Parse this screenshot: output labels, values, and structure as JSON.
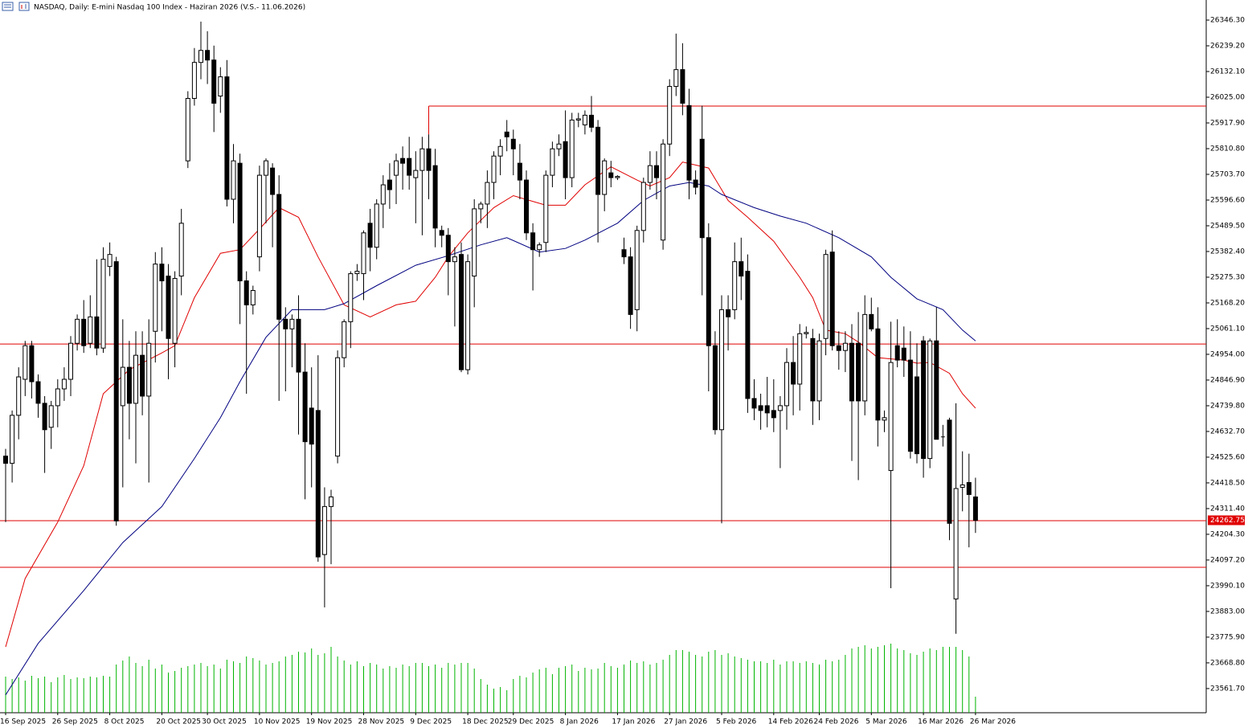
{
  "chart_data": {
    "type": "candlestick",
    "title": "NASDAQ, Daily:  E-mini Nasdaq 100 Index -  Haziran 2026 (V.S.- 11.06.2026)",
    "categories": [
      "16 Sep 2025",
      null,
      null,
      null,
      null,
      null,
      null,
      null,
      "26 Sep 2025",
      null,
      null,
      null,
      null,
      null,
      null,
      null,
      "8 Oct 2025",
      null,
      null,
      null,
      null,
      null,
      null,
      null,
      "20 Oct 2025",
      null,
      null,
      null,
      null,
      null,
      null,
      "30 Oct 2025",
      null,
      null,
      null,
      null,
      null,
      null,
      null,
      "10 Nov 2025",
      null,
      null,
      null,
      null,
      null,
      null,
      null,
      "19 Nov 2025",
      null,
      null,
      null,
      null,
      null,
      null,
      null,
      "28 Nov 2025",
      null,
      null,
      null,
      null,
      null,
      null,
      null,
      "9 Dec 2025",
      null,
      null,
      null,
      null,
      null,
      null,
      null,
      "18 Dec 2025",
      null,
      null,
      null,
      null,
      null,
      null,
      "29 Dec 2025",
      null,
      null,
      null,
      null,
      null,
      null,
      null,
      "8 Jan 2026",
      null,
      null,
      null,
      null,
      null,
      null,
      null,
      "17 Jan 2026",
      null,
      null,
      null,
      null,
      null,
      null,
      null,
      "27 Jan 2026",
      null,
      null,
      null,
      null,
      null,
      null,
      null,
      "5 Feb 2026",
      null,
      null,
      null,
      null,
      null,
      null,
      null,
      "14 Feb 2026",
      null,
      null,
      null,
      null,
      null,
      null,
      "24 Feb 2026",
      null,
      null,
      null,
      null,
      null,
      null,
      null,
      "5 Mar 2026",
      null,
      null,
      null,
      null,
      null,
      null,
      null,
      "16 Mar 2026",
      null,
      null,
      null,
      null,
      null,
      null,
      null,
      "26 Mar 2026"
    ],
    "open": [
      24530,
      24500,
      24700,
      24850,
      24990,
      24840,
      24750,
      24650,
      24740,
      24810,
      24850,
      25000,
      25100,
      25000,
      25110,
      24980,
      25320,
      25340,
      24740,
      24900,
      24750,
      24950,
      24780,
      25050,
      25330,
      25280,
      25000,
      25280,
      25760,
      26020,
      26170,
      26220,
      26180,
      26030,
      26110,
      25600,
      25750,
      25260,
      25160,
      25360,
      25700,
      25730,
      25620,
      25100,
      25060,
      25100,
      24880,
      24730,
      24720,
      24120,
      24320,
      24530,
      24940,
      25090,
      25290,
      25290,
      25500,
      25400,
      25580,
      25680,
      25700,
      25770,
      25770,
      25690,
      25720,
      25810,
      25740,
      25470,
      25450,
      25340,
      25370,
      24890,
      25280,
      25560,
      25580,
      25670,
      25780,
      25880,
      25850,
      25750,
      25680,
      25460,
      25390,
      25420,
      25700,
      25810,
      25840,
      25690,
      25930,
      25910,
      25950,
      25900,
      25620,
      25710,
      25690,
      25390,
      25360,
      25140,
      25470,
      25670,
      25740,
      25430,
      25830,
      26070,
      26140,
      25990,
      25680,
      25850,
      25440,
      24990,
      24640,
      25140,
      25140,
      25340,
      25300,
      24770,
      24740,
      24740,
      24720,
      24720,
      24740,
      24920,
      24830,
      25040,
      25020,
      24760,
      25020,
      25380,
      24990,
      24970,
      25000,
      25000,
      24760,
      25120,
      25060,
      24680,
      24470,
      24990,
      24980,
      24930,
      24860,
      25010,
      24520,
      25010,
      24610,
      24680,
      23935,
      24400,
      24420,
      24360
    ],
    "high": [
      24560,
      24720,
      24900,
      25010,
      25010,
      24870,
      24780,
      24760,
      24850,
      24900,
      25030,
      25120,
      25180,
      25200,
      25350,
      25400,
      25420,
      25360,
      25100,
      25010,
      25050,
      25050,
      25100,
      25380,
      25400,
      25330,
      25300,
      25560,
      26050,
      26230,
      26340,
      26300,
      26240,
      26150,
      26180,
      25830,
      25790,
      25300,
      25240,
      25740,
      25770,
      25750,
      25700,
      25150,
      25120,
      25200,
      25000,
      24900,
      24950,
      24400,
      24390,
      24970,
      25100,
      25300,
      25330,
      25470,
      25560,
      25600,
      25700,
      25750,
      25790,
      25820,
      25860,
      25800,
      25860,
      25870,
      25810,
      25490,
      25480,
      25400,
      25420,
      25370,
      25600,
      25590,
      25720,
      25800,
      25850,
      25930,
      25890,
      25830,
      25720,
      25500,
      25420,
      25720,
      25840,
      25870,
      25970,
      25960,
      25960,
      25970,
      26030,
      25930,
      25770,
      25760,
      25700,
      25440,
      25400,
      25490,
      25690,
      25800,
      25800,
      25850,
      26100,
      26290,
      26250,
      26060,
      25720,
      25990,
      25500,
      25050,
      25200,
      25200,
      25420,
      25440,
      25370,
      24850,
      24790,
      24860,
      24850,
      24780,
      24980,
      25030,
      25080,
      25070,
      25060,
      25040,
      25390,
      25470,
      25050,
      25050,
      25080,
      25130,
      25200,
      25190,
      25150,
      24720,
      25090,
      25100,
      25070,
      25050,
      25000,
      25030,
      25020,
      25150,
      24660,
      24690,
      24750,
      24550,
      24540,
      24440
    ],
    "low": [
      24255,
      24420,
      24600,
      24780,
      24770,
      24690,
      24460,
      24560,
      24650,
      24760,
      24780,
      24970,
      24960,
      24980,
      24950,
      24960,
      25280,
      24240,
      24400,
      24600,
      24500,
      24700,
      24420,
      24920,
      25050,
      24850,
      24900,
      25200,
      25730,
      25990,
      26100,
      26080,
      25880,
      25960,
      25570,
      25500,
      25080,
      24790,
      25120,
      25300,
      25500,
      25400,
      24760,
      24800,
      24900,
      24620,
      24350,
      24400,
      24090,
      23900,
      24080,
      24500,
      24900,
      24980,
      25260,
      25180,
      25300,
      25350,
      25480,
      25560,
      25580,
      25640,
      25640,
      25500,
      25450,
      25600,
      25400,
      25400,
      25200,
      25070,
      24880,
      24870,
      25150,
      25500,
      25480,
      25600,
      25700,
      25800,
      25700,
      25600,
      25430,
      25220,
      25360,
      25380,
      25650,
      25780,
      25600,
      25650,
      25900,
      25870,
      25880,
      25420,
      25550,
      25650,
      25680,
      25330,
      25060,
      25050,
      25420,
      25640,
      25600,
      25390,
      25780,
      26030,
      25950,
      25600,
      25620,
      25200,
      24800,
      24620,
      24250,
      24970,
      25100,
      25180,
      24710,
      24680,
      24640,
      24650,
      24630,
      24480,
      24640,
      24700,
      24720,
      25020,
      24660,
      24680,
      24950,
      24970,
      24890,
      24880,
      24510,
      24430,
      24700,
      25050,
      24570,
      24630,
      23980,
      24900,
      24860,
      24520,
      24500,
      24440,
      24480,
      24600,
      24570,
      24180,
      23790,
      24300,
      24150,
      24210
    ],
    "close": [
      24500,
      24700,
      24860,
      24990,
      24840,
      24750,
      24640,
      24740,
      24810,
      24850,
      25000,
      25100,
      24990,
      25110,
      24980,
      25350,
      25370,
      24260,
      24900,
      24750,
      24950,
      24780,
      25000,
      25330,
      25260,
      25020,
      25270,
      25500,
      26020,
      26170,
      26220,
      26180,
      26000,
      26110,
      25600,
      25760,
      25260,
      25160,
      25220,
      25700,
      25760,
      25620,
      25100,
      25060,
      25100,
      24880,
      24590,
      24580,
      24110,
      24320,
      24360,
      24940,
      25090,
      25290,
      25300,
      25460,
      25400,
      25580,
      25660,
      25640,
      25760,
      25750,
      25700,
      25720,
      25810,
      25720,
      25480,
      25450,
      25340,
      25360,
      24890,
      25340,
      25560,
      25580,
      25670,
      25780,
      25820,
      25860,
      25810,
      25680,
      25460,
      25390,
      25410,
      25700,
      25810,
      25830,
      25690,
      25930,
      25935,
      25950,
      25900,
      25620,
      25760,
      25690,
      25695,
      25360,
      25120,
      25470,
      25670,
      25740,
      25690,
      25830,
      26070,
      26140,
      26000,
      25680,
      25650,
      25440,
      24990,
      24640,
      25140,
      25110,
      25340,
      25280,
      24770,
      24730,
      24720,
      24710,
      24690,
      24740,
      24920,
      24830,
      25040,
      25045,
      24760,
      25010,
      25370,
      24990,
      24970,
      25000,
      24760,
      24760,
      25120,
      25060,
      24680,
      24690,
      24920,
      24930,
      24930,
      24550,
      24540,
      24520,
      25010,
      24600,
      24610,
      24250,
      24395,
      24410,
      24370,
      24262.75
    ],
    "volume": [
      45,
      42,
      44,
      40,
      46,
      43,
      45,
      38,
      44,
      47,
      42,
      44,
      43,
      45,
      44,
      46,
      45,
      60,
      65,
      70,
      62,
      58,
      66,
      55,
      60,
      50,
      52,
      56,
      58,
      60,
      62,
      58,
      60,
      55,
      66,
      64,
      62,
      70,
      68,
      65,
      60,
      62,
      64,
      70,
      72,
      76,
      75,
      80,
      72,
      74,
      82,
      70,
      65,
      60,
      64,
      58,
      62,
      60,
      55,
      58,
      56,
      60,
      58,
      62,
      62,
      58,
      60,
      56,
      62,
      60,
      62,
      62,
      55,
      42,
      35,
      30,
      32,
      28,
      42,
      46,
      44,
      50,
      54,
      56,
      48,
      56,
      58,
      60,
      52,
      56,
      54,
      55,
      62,
      58,
      56,
      60,
      65,
      62,
      64,
      60,
      62,
      66,
      72,
      78,
      78,
      76,
      72,
      70,
      76,
      78,
      72,
      74,
      70,
      68,
      66,
      64,
      64,
      62,
      66,
      60,
      64,
      64,
      62,
      64,
      62,
      60,
      66,
      64,
      66,
      72,
      80,
      82,
      84,
      80,
      82,
      84,
      86,
      80,
      78,
      74,
      72,
      76,
      80,
      78,
      82,
      82,
      82,
      78,
      70,
      20
    ],
    "volume_color": "#00b400",
    "indicators": [
      {
        "color": "#e00000",
        "x": [
          0,
          3,
          8,
          12,
          15,
          19,
          24,
          26,
          29,
          33,
          36,
          39,
          42,
          45,
          48,
          52,
          56,
          60,
          63,
          66,
          68,
          71,
          75,
          78,
          83,
          86,
          89,
          93,
          97,
          99,
          102,
          104,
          108,
          111,
          114,
          118,
          122,
          124,
          126,
          129,
          131,
          134,
          138,
          140,
          142,
          145,
          147,
          149
        ],
        "values": [
          23735,
          24020,
          24255,
          24490,
          24790,
          24890,
          24960,
          24990,
          25190,
          25375,
          25390,
          25476,
          25565,
          25525,
          25360,
          25160,
          25110,
          25160,
          25175,
          25275,
          25360,
          25460,
          25565,
          25615,
          25575,
          25575,
          25660,
          25735,
          25680,
          25655,
          25690,
          25755,
          25730,
          25595,
          25525,
          25425,
          25275,
          25190,
          25055,
          25040,
          25005,
          24940,
          24930,
          24917,
          24920,
          24875,
          24790,
          24730
        ]
      },
      {
        "color": "#000080",
        "x": [
          0,
          5,
          12,
          18,
          24,
          29,
          33,
          36,
          40,
          44,
          49,
          52,
          57,
          63,
          68,
          73,
          77,
          82,
          86,
          89,
          94,
          98,
          102,
          105,
          108,
          110,
          115,
          119,
          123,
          128,
          133,
          136,
          140,
          144,
          147,
          149
        ],
        "values": [
          23535,
          23750,
          23970,
          24170,
          24320,
          24520,
          24690,
          24840,
          25025,
          25140,
          25140,
          25165,
          25240,
          25325,
          25365,
          25410,
          25440,
          25380,
          25395,
          25430,
          25500,
          25595,
          25655,
          25670,
          25655,
          25620,
          25565,
          25530,
          25500,
          25440,
          25360,
          25275,
          25185,
          25140,
          25055,
          25010
        ]
      }
    ],
    "hlines": [
      {
        "value": 25988,
        "from": 65,
        "color": "#e00000"
      },
      {
        "value": 24997,
        "color": "#e00000"
      },
      {
        "value": 24261,
        "color": "#e00000"
      },
      {
        "value": 24067,
        "color": "#e00000"
      }
    ],
    "ylim": [
      23461,
      26430
    ],
    "yticks": [
      {
        "value": 26346.3,
        "label": "26346.30"
      },
      {
        "value": 26239.2,
        "label": "26239.20"
      },
      {
        "value": 26132.1,
        "label": "26132.10"
      },
      {
        "value": 26025,
        "label": "26025.00"
      },
      {
        "value": 25917.9,
        "label": "25917.90"
      },
      {
        "value": 25810.8,
        "label": "25810.80"
      },
      {
        "value": 25703.7,
        "label": "25703.70"
      },
      {
        "value": 25596.6,
        "label": "25596.60"
      },
      {
        "value": 25489.5,
        "label": "25489.50"
      },
      {
        "value": 25382.4,
        "label": "25382.40"
      },
      {
        "value": 25275.3,
        "label": "25275.30"
      },
      {
        "value": 25168.2,
        "label": "25168.20"
      },
      {
        "value": 25061.1,
        "label": "25061.10"
      },
      {
        "value": 24954,
        "label": "24954.00"
      },
      {
        "value": 24846.9,
        "label": "24846.90"
      },
      {
        "value": 24739.8,
        "label": "24739.80"
      },
      {
        "value": 24632.7,
        "label": "24632.70"
      },
      {
        "value": 24525.6,
        "label": "24525.60"
      },
      {
        "value": 24418.5,
        "label": "24418.50"
      },
      {
        "value": 24311.4,
        "label": "24311.40"
      },
      {
        "value": 24204.3,
        "label": "24204.30"
      },
      {
        "value": 24097.2,
        "label": "24097.20"
      },
      {
        "value": 23990.1,
        "label": "23990.10"
      },
      {
        "value": 23883,
        "label": "23883.00"
      },
      {
        "value": 23775.9,
        "label": "23775.90"
      },
      {
        "value": 23668.8,
        "label": "23668.80"
      },
      {
        "value": 23561.7,
        "label": "23561.70"
      }
    ],
    "price_label_color": "#e00000"
  }
}
